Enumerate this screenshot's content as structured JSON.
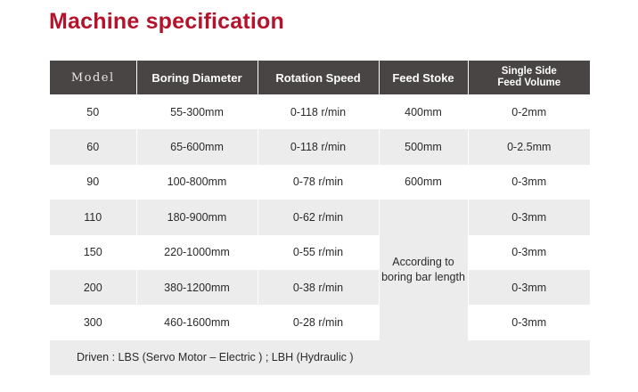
{
  "title": "Machine specification",
  "table": {
    "headers": {
      "model": "Model",
      "boring_diameter": "Boring Diameter",
      "rotation_speed": "Rotation Speed",
      "feed_stoke": "Feed Stoke",
      "feed_volume_line1": "Single Side",
      "feed_volume_line2": "Feed Volume"
    },
    "rows": [
      {
        "model": "50",
        "boring": "55-300mm",
        "speed": "0-118 r/min",
        "feed": "400mm",
        "volume": "0-2mm"
      },
      {
        "model": "60",
        "boring": "65-600mm",
        "speed": "0-118 r/min",
        "feed": "500mm",
        "volume": "0-2.5mm"
      },
      {
        "model": "90",
        "boring": "100-800mm",
        "speed": "0-78 r/min",
        "feed": "600mm",
        "volume": "0-3mm"
      },
      {
        "model": "110",
        "boring": "180-900mm",
        "speed": "0-62 r/min",
        "volume": "0-3mm"
      },
      {
        "model": "150",
        "boring": "220-1000mm",
        "speed": "0-55 r/min",
        "volume": "0-3mm"
      },
      {
        "model": "200",
        "boring": "380-1200mm",
        "speed": "0-38 r/min",
        "volume": "0-3mm"
      },
      {
        "model": "300",
        "boring": "460-1600mm",
        "speed": "0-28 r/min",
        "volume": "0-3mm"
      }
    ],
    "merged_feed_line1": "According to",
    "merged_feed_line2": "boring bar length",
    "footer": "Driven : LBS (Servo Motor – Electric ) ; LBH (Hydraulic )"
  }
}
